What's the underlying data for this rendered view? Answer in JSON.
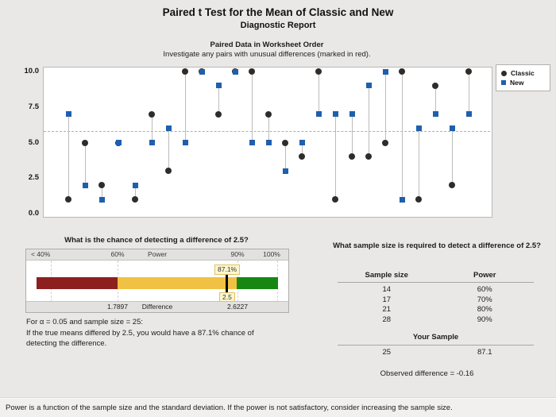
{
  "header": {
    "title": "Paired t Test for the Mean of Classic and New",
    "subtitle": "Diagnostic Report"
  },
  "chart_data": [
    {
      "id": "paired-scatter",
      "type": "scatter",
      "title": "Paired Data in Worksheet Order",
      "subtitle": "Investigate any pairs with unusual differences (marked in red).",
      "x": [
        1,
        2,
        3,
        4,
        5,
        6,
        7,
        8,
        9,
        10,
        11,
        12,
        13,
        14,
        15,
        16,
        17,
        18,
        19,
        20,
        21,
        22,
        23,
        24,
        25
      ],
      "series": [
        {
          "name": "Classic",
          "marker": "circle",
          "color": "#2e2d2b",
          "values": [
            1,
            5,
            2,
            5,
            1,
            7,
            3,
            10,
            10,
            7,
            10,
            10,
            7,
            5,
            4,
            10,
            1,
            4,
            4,
            5,
            10,
            1,
            9,
            2,
            10
          ]
        },
        {
          "name": "New",
          "marker": "square",
          "color": "#1f5fad",
          "values": [
            7,
            2,
            1,
            5,
            2,
            5,
            6,
            5,
            10,
            9,
            10,
            5,
            5,
            3,
            5,
            7,
            7,
            7,
            9,
            10,
            1,
            6,
            7,
            6,
            7
          ]
        }
      ],
      "ylim": [
        0,
        10
      ],
      "yticks": [
        {
          "label": "10.0",
          "value": 10
        },
        {
          "label": "7.5",
          "value": 7.5
        },
        {
          "label": "5.0",
          "value": 5
        },
        {
          "label": "2.5",
          "value": 2.5
        },
        {
          "label": "0.0",
          "value": 0
        }
      ],
      "reference_line_value": 5.8,
      "connector_color": "#bdbcba",
      "legend_position": "top-right",
      "grid": false
    },
    {
      "id": "power-gauge",
      "type": "gauge",
      "title": "What is the chance of detecting a difference of 2.5?",
      "axis_labels": [
        "< 40%",
        "60%",
        "Power",
        "90%",
        "100%"
      ],
      "bottom_labels": [
        "1.7897",
        "Difference",
        "2.6227"
      ],
      "marker_power_label": "87.1%",
      "marker_difference_label": "2.5",
      "marker_power_value": 87.1,
      "segments": [
        {
          "name": "low",
          "color": "#8e1f1f",
          "power_range": [
            "<40%",
            "60%"
          ]
        },
        {
          "name": "medium",
          "color": "#f0c143",
          "power_range": [
            "60%",
            "90%"
          ]
        },
        {
          "name": "high",
          "color": "#168713",
          "power_range": [
            "90%",
            "100%"
          ]
        }
      ]
    },
    {
      "id": "sample-size-table",
      "type": "table",
      "title": "What sample size is required to detect a difference of 2.5?",
      "columns": [
        "Sample size",
        "Power"
      ],
      "rows": [
        [
          "14",
          "60%"
        ],
        [
          "17",
          "70%"
        ],
        [
          "21",
          "80%"
        ],
        [
          "28",
          "90%"
        ]
      ],
      "your_sample_label": "Your Sample",
      "your_sample_row": [
        "25",
        "87.1"
      ],
      "observed_difference": "Observed difference = -0.16"
    }
  ],
  "power_note": {
    "line1": "For α = 0.05 and sample size = 25:",
    "line2": "If the true means differed by 2.5, you would have a 87.1% chance of",
    "line3": "detecting the difference."
  },
  "footer": {
    "note": "Power is a function of the sample size and the standard deviation. If the power is not satisfactory, consider increasing the sample size."
  }
}
